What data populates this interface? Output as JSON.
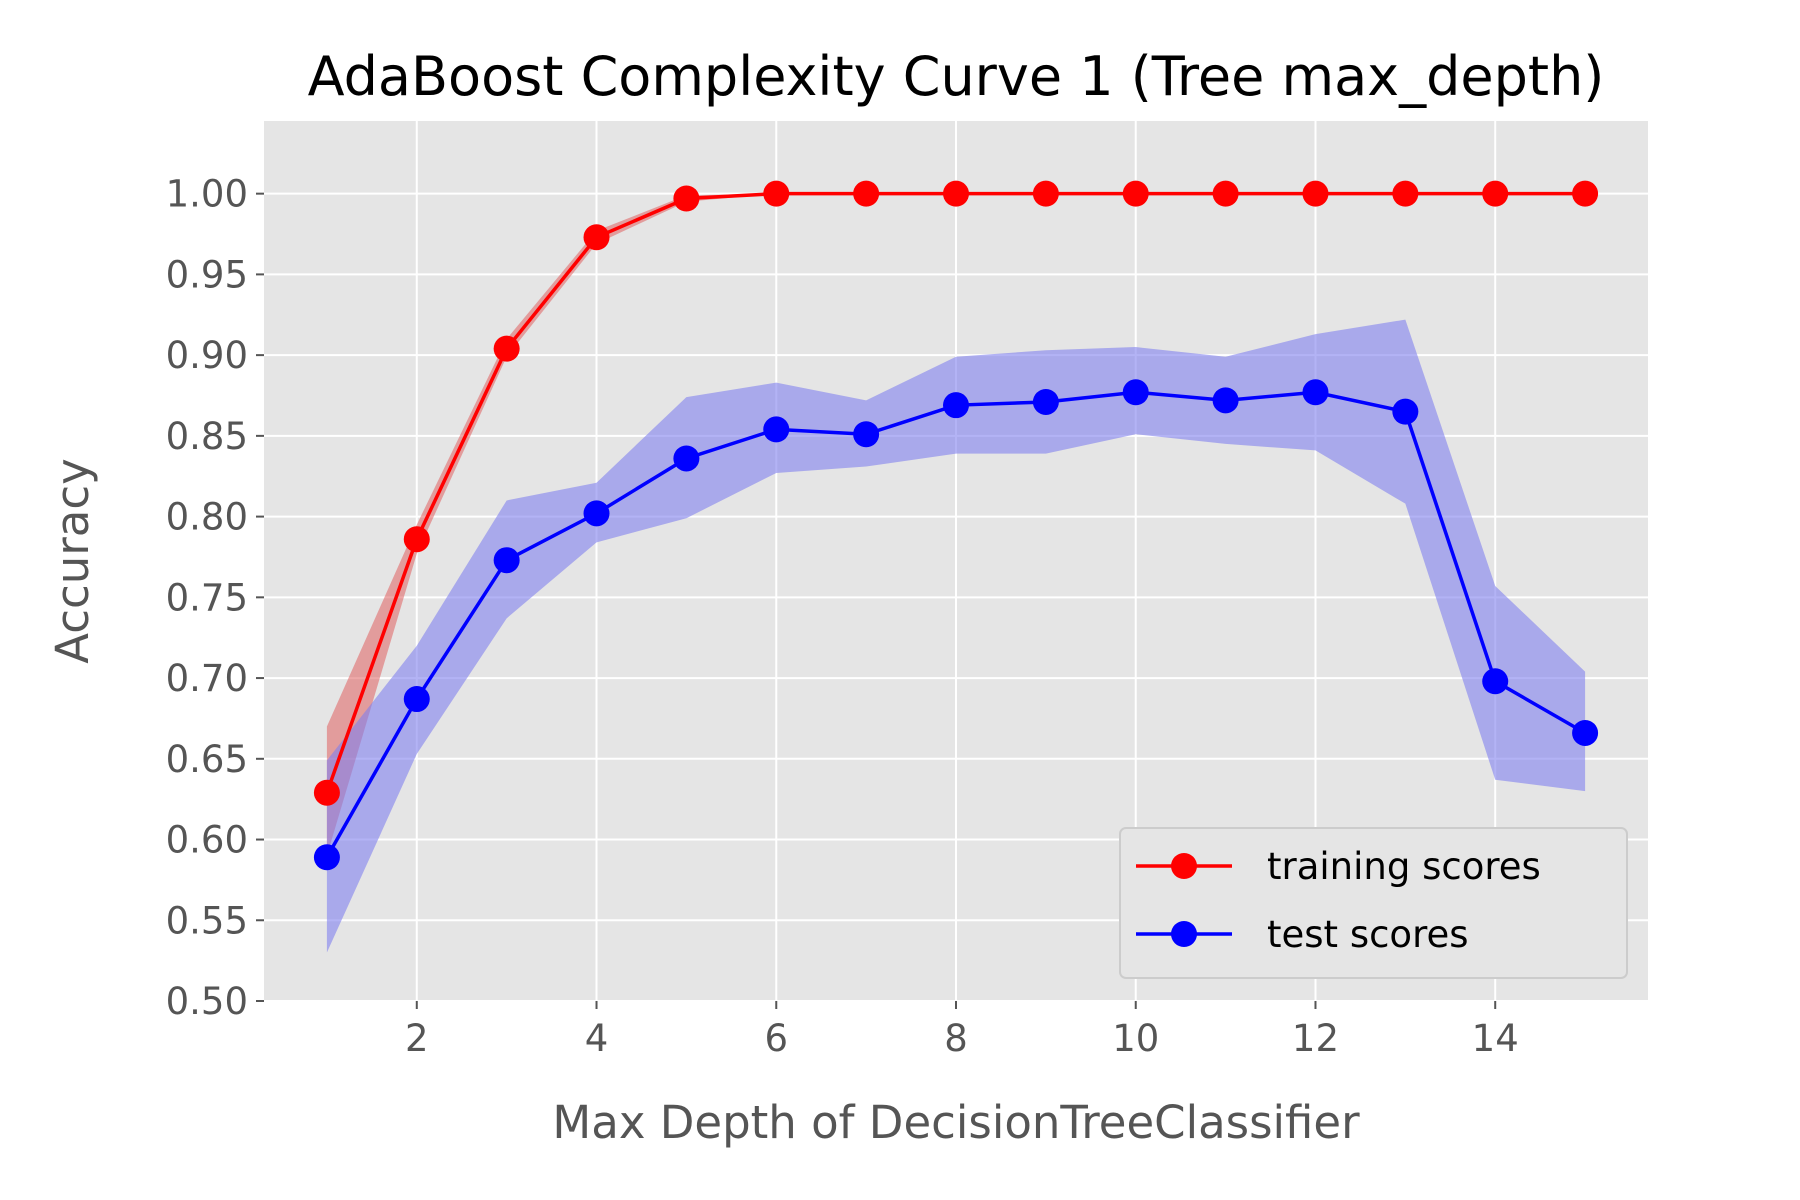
{
  "chart_data": {
    "type": "line",
    "title": "AdaBoost Complexity Curve 1 (Tree max_depth)",
    "xlabel": "Max Depth of DecisionTreeClassifier",
    "ylabel": "Accuracy",
    "x": [
      1,
      2,
      3,
      4,
      5,
      6,
      7,
      8,
      9,
      10,
      11,
      12,
      13,
      14,
      15
    ],
    "xlim": [
      0.3,
      15.7
    ],
    "ylim": [
      0.5,
      1.045
    ],
    "xticks": [
      2,
      4,
      6,
      8,
      10,
      12,
      14
    ],
    "yticks": [
      0.5,
      0.55,
      0.6,
      0.65,
      0.7,
      0.75,
      0.8,
      0.85,
      0.9,
      0.95,
      1.0
    ],
    "xtick_labels": [
      "2",
      "4",
      "6",
      "8",
      "10",
      "12",
      "14"
    ],
    "ytick_labels": [
      "0.50",
      "0.55",
      "0.60",
      "0.65",
      "0.70",
      "0.75",
      "0.80",
      "0.85",
      "0.90",
      "0.95",
      "1.00"
    ],
    "grid": true,
    "legend_position": "lower-right",
    "background_color": "#e5e5e5",
    "series": [
      {
        "name": "training scores",
        "color": "#ff0000",
        "band_color": "#e06060",
        "values": [
          0.629,
          0.786,
          0.904,
          0.973,
          0.997,
          1.0,
          1.0,
          1.0,
          1.0,
          1.0,
          1.0,
          1.0,
          1.0,
          1.0,
          1.0
        ],
        "band_upper": [
          0.67,
          0.795,
          0.91,
          0.977,
          0.999,
          1.0,
          1.0,
          1.0,
          1.0,
          1.0,
          1.0,
          1.0,
          1.0,
          1.0,
          1.0
        ],
        "band_lower": [
          0.59,
          0.777,
          0.899,
          0.969,
          0.995,
          1.0,
          1.0,
          1.0,
          1.0,
          1.0,
          1.0,
          1.0,
          1.0,
          1.0,
          1.0
        ]
      },
      {
        "name": "test scores",
        "color": "#0000ff",
        "band_color": "#8080ee",
        "values": [
          0.589,
          0.687,
          0.773,
          0.802,
          0.836,
          0.854,
          0.851,
          0.869,
          0.871,
          0.877,
          0.872,
          0.877,
          0.865,
          0.698,
          0.666
        ],
        "band_upper": [
          0.649,
          0.72,
          0.81,
          0.821,
          0.874,
          0.883,
          0.872,
          0.899,
          0.903,
          0.905,
          0.899,
          0.913,
          0.922,
          0.757,
          0.704
        ],
        "band_lower": [
          0.53,
          0.653,
          0.737,
          0.784,
          0.799,
          0.827,
          0.831,
          0.839,
          0.839,
          0.851,
          0.845,
          0.841,
          0.808,
          0.637,
          0.63
        ]
      }
    ]
  }
}
